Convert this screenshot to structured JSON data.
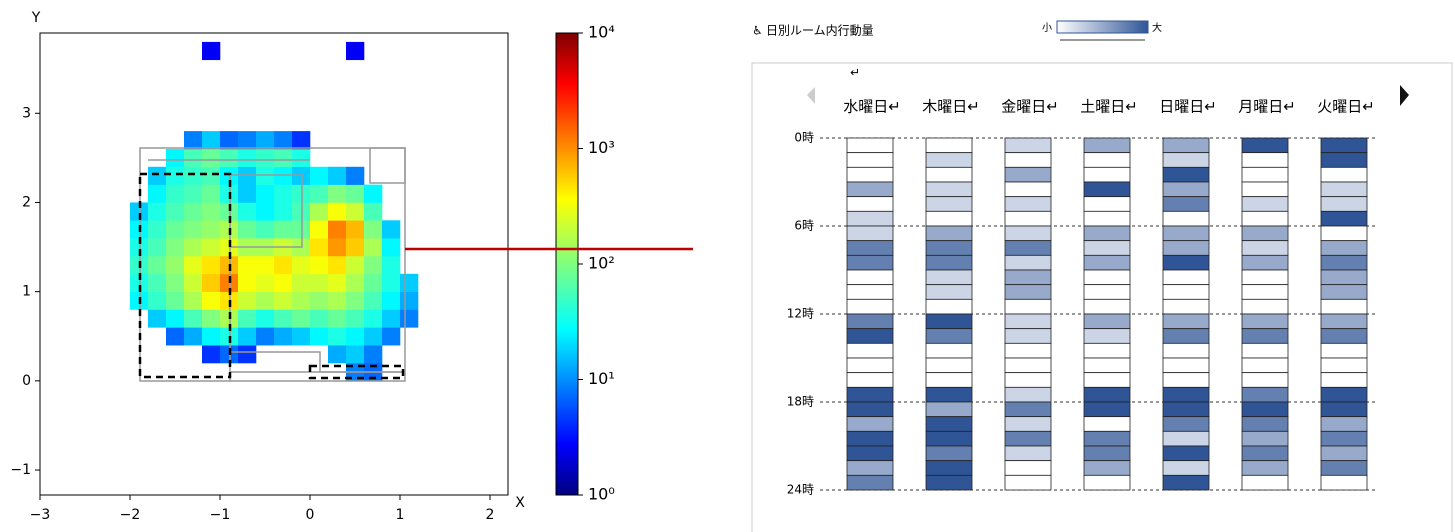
{
  "chart_data": [
    {
      "type": "heatmap2d",
      "xlabel": "X",
      "ylabel": "Y",
      "xlim": [
        -3,
        2.2
      ],
      "ylim": [
        -1.28,
        3.9
      ],
      "xticks": [
        {
          "value": -3,
          "label": "−3"
        },
        {
          "value": -2,
          "label": "−2"
        },
        {
          "value": -1,
          "label": "−1"
        },
        0,
        1,
        2
      ],
      "yticks": [
        {
          "value": -1,
          "label": "−1"
        },
        0,
        1,
        2,
        3
      ],
      "zscale": "log",
      "colormap": "jet",
      "zlim": [
        1,
        10000
      ],
      "zticks": [
        {
          "value": 1,
          "label": "10⁰"
        },
        {
          "value": 10,
          "label": "10¹"
        },
        {
          "value": 100,
          "label": "10²"
        },
        {
          "value": 1000,
          "label": "10³"
        },
        {
          "value": 10000,
          "label": "10⁴"
        }
      ],
      "x_edges": [
        -2.0,
        -1.8,
        -1.6,
        -1.4,
        -1.2,
        -1.0,
        -0.8,
        -0.6,
        -0.4,
        -0.2,
        0.0,
        0.2,
        0.4,
        0.6,
        0.8,
        1.0,
        1.2
      ],
      "y_edges": [
        0.0,
        0.2,
        0.4,
        0.6,
        0.8,
        1.0,
        1.2,
        1.4,
        1.6,
        1.8,
        2.0,
        2.2,
        2.4,
        2.6,
        2.8,
        3.0,
        3.2,
        3.4,
        3.6,
        3.8
      ],
      "values": [
        [
          null,
          null,
          null,
          null,
          null,
          null,
          null,
          null,
          null,
          null,
          null,
          null,
          10,
          8,
          null,
          null
        ],
        [
          null,
          null,
          null,
          null,
          5,
          8,
          5,
          null,
          null,
          null,
          null,
          15,
          20,
          10,
          null,
          null
        ],
        [
          null,
          null,
          8,
          15,
          30,
          40,
          20,
          10,
          15,
          20,
          30,
          40,
          30,
          20,
          10,
          null
        ],
        [
          null,
          20,
          30,
          60,
          100,
          150,
          60,
          40,
          60,
          80,
          60,
          80,
          60,
          40,
          20,
          10
        ],
        [
          30,
          50,
          80,
          150,
          300,
          400,
          200,
          150,
          200,
          150,
          120,
          150,
          100,
          60,
          30,
          15
        ],
        [
          40,
          60,
          100,
          200,
          500,
          1000,
          300,
          250,
          300,
          200,
          200,
          250,
          150,
          80,
          40,
          20
        ],
        [
          50,
          80,
          120,
          250,
          400,
          600,
          300,
          300,
          400,
          250,
          300,
          400,
          200,
          100,
          40,
          null
        ],
        [
          40,
          60,
          100,
          150,
          200,
          250,
          150,
          150,
          200,
          150,
          400,
          800,
          500,
          150,
          30,
          null
        ],
        [
          30,
          50,
          80,
          100,
          120,
          150,
          80,
          60,
          80,
          80,
          300,
          1000,
          600,
          100,
          20,
          null
        ],
        [
          20,
          40,
          60,
          80,
          100,
          80,
          40,
          30,
          40,
          60,
          150,
          300,
          200,
          60,
          null,
          null
        ],
        [
          null,
          30,
          50,
          60,
          80,
          40,
          20,
          30,
          40,
          50,
          60,
          100,
          80,
          30,
          null,
          null
        ],
        [
          null,
          20,
          40,
          50,
          60,
          30,
          20,
          40,
          30,
          20,
          30,
          20,
          10,
          null,
          null,
          null
        ],
        [
          null,
          null,
          30,
          60,
          80,
          60,
          40,
          50,
          60,
          40,
          null,
          null,
          null,
          null,
          null,
          null
        ],
        [
          null,
          null,
          null,
          10,
          20,
          8,
          10,
          15,
          10,
          5,
          null,
          null,
          null,
          null,
          null,
          null
        ],
        [
          null,
          null,
          null,
          null,
          null,
          null,
          null,
          null,
          null,
          null,
          null,
          null,
          null,
          null,
          null,
          null
        ],
        [
          null,
          null,
          null,
          null,
          null,
          null,
          null,
          null,
          null,
          null,
          null,
          null,
          null,
          null,
          null,
          null
        ],
        [
          null,
          null,
          null,
          null,
          null,
          null,
          null,
          null,
          null,
          null,
          null,
          null,
          null,
          null,
          null,
          null
        ],
        [
          null,
          null,
          null,
          null,
          null,
          null,
          null,
          null,
          null,
          null,
          null,
          null,
          null,
          null,
          null,
          null
        ],
        [
          null,
          null,
          null,
          null,
          3,
          null,
          null,
          null,
          null,
          null,
          null,
          null,
          3,
          null,
          null,
          null
        ]
      ]
    },
    {
      "type": "daygrid",
      "title": "日別ルーム内行動量",
      "annotation": "↵",
      "legend": {
        "min_label": "小",
        "max_label": "大",
        "low_color": "#ffffff",
        "high_color": "#2f5597"
      },
      "zlim": [
        0,
        4
      ],
      "categories": [
        "水曜日↵",
        "木曜日↵",
        "金曜日↵",
        "土曜日↵",
        "日曜日↵",
        "月曜日↵",
        "火曜日↵"
      ],
      "ylim": [
        0,
        24
      ],
      "yticks": [
        {
          "value": 0,
          "label": "0時"
        },
        {
          "value": 6,
          "label": "6時"
        },
        {
          "value": 12,
          "label": "12時"
        },
        {
          "value": 18,
          "label": "18時"
        },
        {
          "value": 24,
          "label": "24時"
        }
      ],
      "values": [
        [
          0,
          0,
          0,
          2,
          0,
          1,
          1,
          3,
          3,
          0,
          0,
          0,
          3,
          4,
          0,
          0,
          0,
          4,
          4,
          2,
          4,
          4,
          2,
          3
        ],
        [
          0,
          1,
          0,
          1,
          1,
          0,
          2,
          3,
          3,
          1,
          1,
          0,
          4,
          3,
          0,
          0,
          0,
          4,
          2,
          4,
          4,
          3,
          4,
          4
        ],
        [
          1,
          0,
          2,
          0,
          1,
          0,
          1,
          3,
          1,
          2,
          2,
          0,
          1,
          1,
          0,
          0,
          0,
          1,
          3,
          1,
          3,
          1,
          0,
          0
        ],
        [
          2,
          0,
          0,
          4,
          0,
          0,
          2,
          1,
          2,
          0,
          0,
          0,
          2,
          1,
          0,
          0,
          0,
          4,
          4,
          0,
          3,
          3,
          2,
          0
        ],
        [
          2,
          1,
          4,
          2,
          3,
          0,
          2,
          2,
          4,
          0,
          0,
          0,
          2,
          3,
          0,
          0,
          0,
          4,
          4,
          3,
          1,
          4,
          1,
          4
        ],
        [
          4,
          0,
          0,
          0,
          1,
          0,
          2,
          1,
          2,
          0,
          0,
          0,
          2,
          3,
          0,
          0,
          0,
          3,
          4,
          3,
          2,
          3,
          2,
          0
        ],
        [
          4,
          4,
          0,
          1,
          1,
          4,
          0,
          2,
          3,
          2,
          2,
          0,
          2,
          3,
          0,
          0,
          0,
          4,
          4,
          2,
          3,
          2,
          3,
          0
        ]
      ]
    }
  ]
}
